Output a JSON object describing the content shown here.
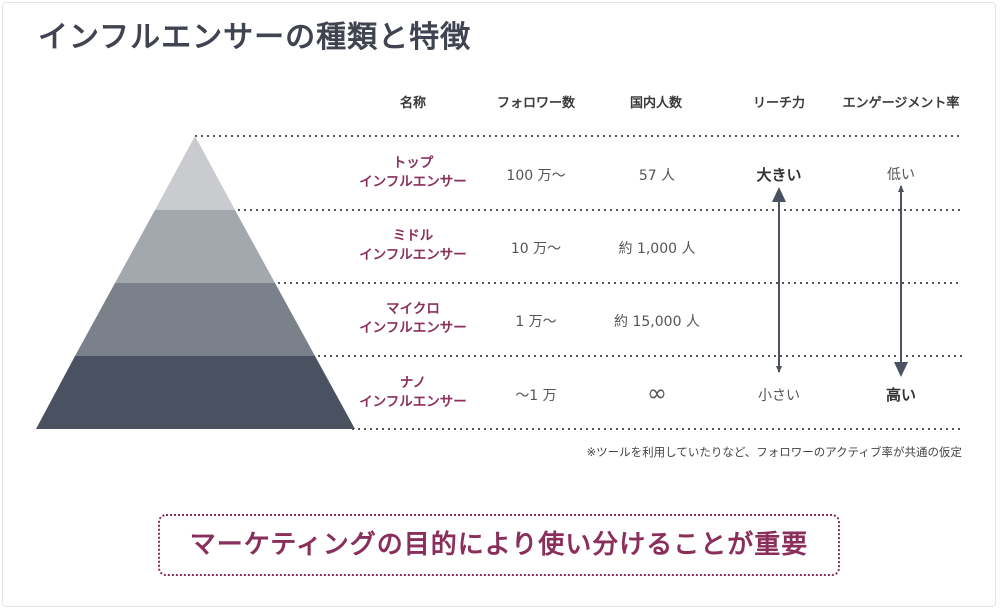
{
  "title": "インフルエンサーの種類と特徴",
  "headers": {
    "name": "名称",
    "followers": "フォロワー数",
    "domestic": "国内人数",
    "reach": "リーチ力",
    "engagement": "エンゲージメント率"
  },
  "rows": [
    {
      "name1": "トップ",
      "name2": "インフルエンサー",
      "followers": "100 万〜",
      "domestic": "57 人"
    },
    {
      "name1": "ミドル",
      "name2": "インフルエンサー",
      "followers": "10 万〜",
      "domestic": "約 1,000 人"
    },
    {
      "name1": "マイクロ",
      "name2": "インフルエンサー",
      "followers": "1 万〜",
      "domestic": "約 15,000 人"
    },
    {
      "name1": "ナノ",
      "name2": "インフルエンサー",
      "followers": "〜1 万",
      "domestic": "∞"
    }
  ],
  "reach": {
    "top": "大きい",
    "bottom": "小さい"
  },
  "engagement": {
    "top": "低い",
    "bottom": "高い"
  },
  "note": "※ツールを利用していたりなど、フォロワーのアクティブ率が共通の仮定",
  "callout": "マーケティングの目的により使い分けることが重要",
  "colors": {
    "pyramid": [
      "#c9cbcf",
      "#a3a7ae",
      "#7b818b",
      "#4a5160"
    ],
    "accent": "#8a2f5b",
    "arrow": "#4a5160"
  }
}
